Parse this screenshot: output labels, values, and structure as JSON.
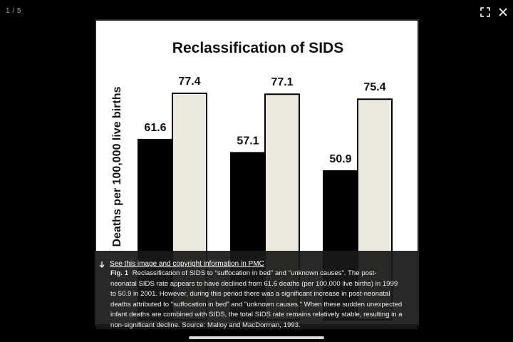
{
  "viewer": {
    "counter": "1 / 5",
    "fullscreen_icon": "fullscreen-icon",
    "close_icon": "close-icon"
  },
  "chart_data": {
    "type": "bar",
    "title": "Reclassification of SIDS",
    "ylabel": "Deaths per 100,000 live births",
    "xlabel": "",
    "categories": [
      "",
      "",
      ""
    ],
    "series": [
      {
        "values": [
          61.6,
          57.1,
          50.9
        ],
        "color": "#000000"
      },
      {
        "values": [
          77.4,
          77.1,
          75.4
        ],
        "color": "#ece9df"
      }
    ],
    "ylim": [
      0,
      90
    ],
    "grid": false,
    "partially_hidden_text": "es"
  },
  "caption": {
    "link_text": "See this image and copyright information in PMC",
    "link_icon": "arrow-down-icon",
    "fig_label": "Fig. 1",
    "text": "Reclassification of SIDS to \"suffocation in bed\" and \"unknown causes\". The post-neonatal SIDS rate appears to have declined from 61.6 deaths (per 100,000 live births) in 1999 to 50.9 in 2001. However, during this period there was a significant increase in post-neonatal deaths attributed to \"suffocation in bed\" and \"unknown causes.\" When these sudden unexpected infant deaths are combined with SIDS, the total SIDS rate remains relatively stable, resulting in a non-significant decline. Source: Malloy and MacDorman, 1993."
  }
}
